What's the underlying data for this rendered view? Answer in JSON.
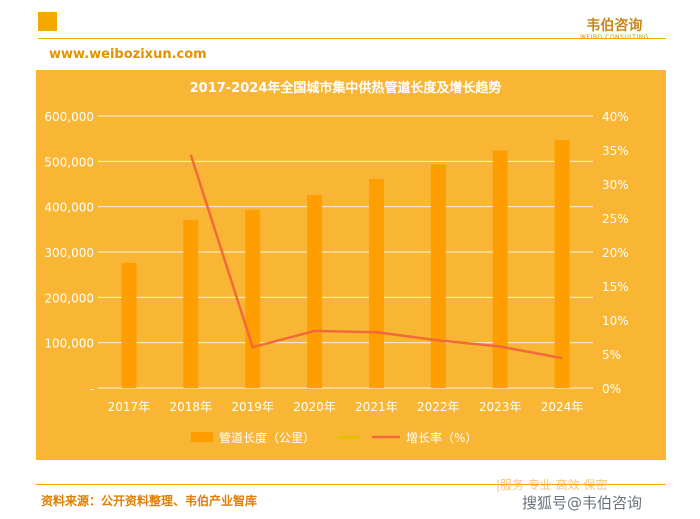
{
  "header": {
    "brand_name": "韦伯咨询",
    "brand_english": "WEIBO CONSULTING",
    "website": "www.weibozixun.com"
  },
  "footer": {
    "source": "资料来源：公开资料整理、韦伯产业智库",
    "watermark_faint": "|服务 专业 高效 保密",
    "watermark_sohu": "搜狐号@韦伯咨询"
  },
  "colors": {
    "panel_bg": "#f9b635",
    "bar": "#ff9e00",
    "line": "#f16a3a",
    "grid": "#ffffff",
    "legend_series2": "#e5c000"
  },
  "chart_data": {
    "type": "bar",
    "title": "2017-2024年全国城市集中供热管道长度及增长趋势",
    "categories": [
      "2017年",
      "2018年",
      "2019年",
      "2020年",
      "2021年",
      "2022年",
      "2023年",
      "2024年"
    ],
    "series": [
      {
        "name": "管道长度（公里）",
        "type": "bar",
        "axis": "left",
        "values": [
          276000,
          371000,
          393000,
          426000,
          461000,
          493000,
          524000,
          547000
        ]
      },
      {
        "name": "增长率（%）",
        "type": "line",
        "axis": "right",
        "values": [
          null,
          34.3,
          6.0,
          8.4,
          8.2,
          7.0,
          6.1,
          4.4
        ]
      }
    ],
    "y_left": {
      "min": 0,
      "max": 600000,
      "ticks": [
        "-",
        "100,000",
        "200,000",
        "300,000",
        "400,000",
        "500,000",
        "600,000"
      ]
    },
    "y_right": {
      "min": 0,
      "max": 40,
      "ticks": [
        "0%",
        "5%",
        "10%",
        "15%",
        "20%",
        "25%",
        "30%",
        "35%",
        "40%"
      ]
    },
    "grid": true,
    "legend_position": "bottom",
    "legend_extra_entry": ""
  }
}
